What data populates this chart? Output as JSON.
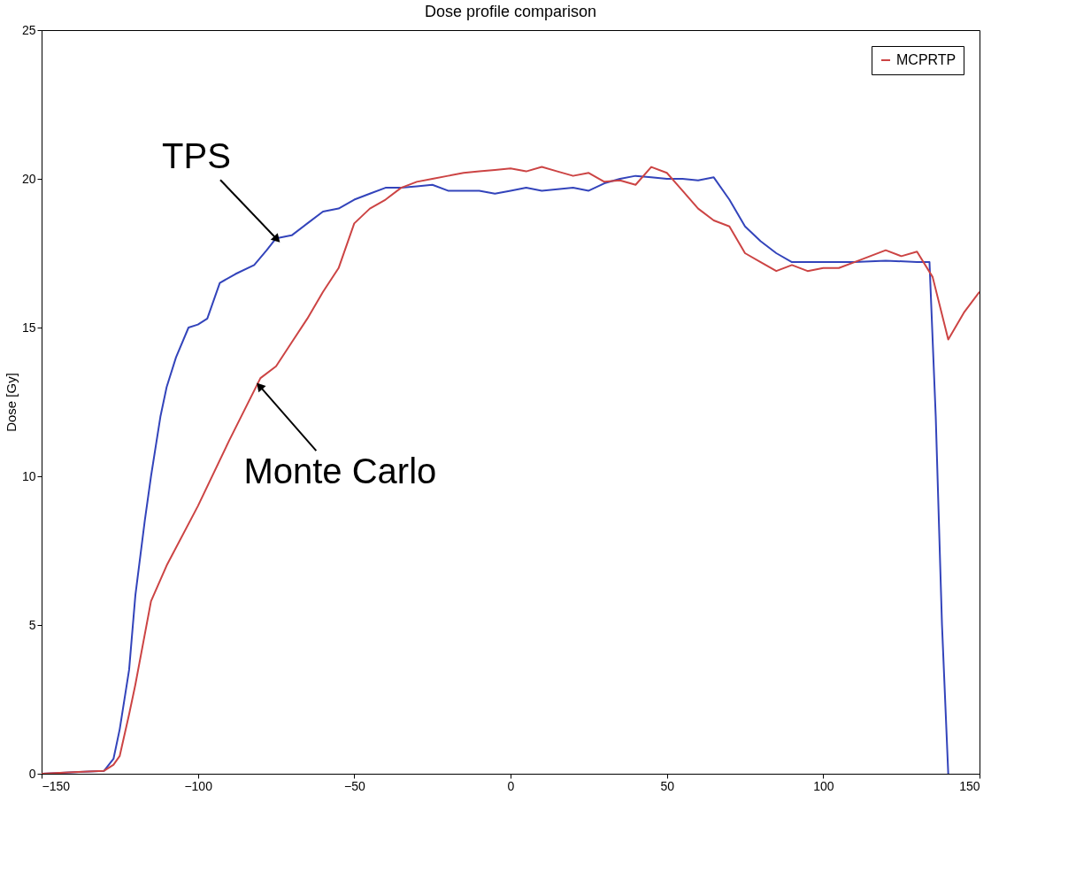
{
  "chart_data": {
    "type": "line",
    "title": "Dose profile comparison",
    "ylabel": "Dose [Gy]",
    "xlim": [
      -150,
      150
    ],
    "xticks": [
      -150,
      -100,
      -50,
      0,
      50,
      100,
      150
    ],
    "ylim": [
      0,
      25
    ],
    "yticks": [
      0,
      5,
      10,
      15,
      20,
      25
    ],
    "grid": false,
    "legend": "top right",
    "marker": "none",
    "line_style": "solid",
    "series": [
      {
        "color": "#3344bb",
        "x": [
          -150,
          -130,
          -127,
          -125,
          -122,
          -120,
          -117,
          -115,
          -112,
          -110,
          -107,
          -103,
          -100,
          -97,
          -93,
          -88,
          -82,
          -78,
          -75,
          -70,
          -65,
          -60,
          -55,
          -50,
          -45,
          -40,
          -35,
          -30,
          -25,
          -20,
          -15,
          -10,
          -5,
          0,
          5,
          10,
          15,
          20,
          25,
          30,
          35,
          40,
          45,
          50,
          55,
          60,
          65,
          70,
          75,
          80,
          85,
          90,
          100,
          110,
          120,
          130,
          134,
          136,
          138,
          140
        ],
        "values": [
          0,
          0.1,
          0.5,
          1.5,
          3.5,
          6,
          8.5,
          10,
          12,
          13,
          14,
          15,
          15.1,
          15.3,
          16.5,
          16.8,
          17.1,
          17.6,
          18.0,
          18.1,
          18.5,
          18.9,
          19.0,
          19.3,
          19.5,
          19.7,
          19.7,
          19.75,
          19.8,
          19.6,
          19.6,
          19.6,
          19.5,
          19.6,
          19.7,
          19.6,
          19.65,
          19.7,
          19.6,
          19.85,
          20.0,
          20.1,
          20.05,
          20.0,
          20.0,
          19.95,
          20.05,
          19.3,
          18.4,
          17.9,
          17.5,
          17.2,
          17.2,
          17.2,
          17.25,
          17.2,
          17.2,
          12,
          5,
          0
        ]
      },
      {
        "name": "MCPRTP",
        "color": "#cc4444",
        "x": [
          -150,
          -140,
          -130,
          -127,
          -125,
          -122,
          -120,
          -115,
          -110,
          -100,
          -90,
          -80,
          -75,
          -70,
          -65,
          -60,
          -55,
          -50,
          -45,
          -40,
          -35,
          -30,
          -25,
          -20,
          -15,
          -10,
          -5,
          0,
          5,
          10,
          15,
          20,
          25,
          30,
          35,
          40,
          45,
          50,
          55,
          60,
          65,
          70,
          75,
          80,
          85,
          90,
          95,
          100,
          105,
          110,
          115,
          120,
          125,
          130,
          135,
          140,
          145,
          150
        ],
        "values": [
          0,
          0.05,
          0.1,
          0.3,
          0.6,
          2,
          3,
          5.8,
          7,
          9,
          11.2,
          13.3,
          13.7,
          14.5,
          15.3,
          16.2,
          17.0,
          18.5,
          19.0,
          19.3,
          19.7,
          19.9,
          20.0,
          20.1,
          20.2,
          20.25,
          20.3,
          20.35,
          20.25,
          20.4,
          20.25,
          20.1,
          20.2,
          19.9,
          19.95,
          19.8,
          20.4,
          20.2,
          19.6,
          19.0,
          18.6,
          18.4,
          17.5,
          17.2,
          16.9,
          17.1,
          16.9,
          17.0,
          17.0,
          17.2,
          17.4,
          17.6,
          17.4,
          17.55,
          16.7,
          14.6,
          15.5,
          16.2
        ]
      }
    ],
    "annotations": [
      {
        "text": "TPS",
        "x": -75,
        "y": 18
      },
      {
        "text": "Monte Carlo",
        "x": -80,
        "y": 13
      }
    ]
  }
}
